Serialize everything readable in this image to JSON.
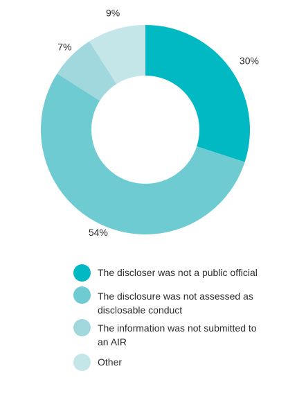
{
  "chart_data": {
    "type": "pie",
    "donut": true,
    "categories": [
      "The discloser was not a public official",
      "The disclosure was not assessed as disclosable conduct",
      "The information was not submitted to an AIR",
      "Other"
    ],
    "values": [
      30,
      54,
      7,
      9
    ],
    "labels": [
      "30%",
      "54%",
      "7%",
      "9%"
    ],
    "colors": [
      "#00B9C2",
      "#6ECBD1",
      "#A0D8DD",
      "#C4E6E9"
    ],
    "legend_position": "bottom"
  },
  "legend": {
    "items": [
      {
        "label": "The discloser was not a public official",
        "color": "#00B9C2"
      },
      {
        "label": "The disclosure was not assessed as disclosable conduct",
        "color": "#6ECBD1"
      },
      {
        "label": "The information was not submitted to an AIR",
        "color": "#A0D8DD"
      },
      {
        "label": "Other",
        "color": "#C4E6E9"
      }
    ]
  }
}
